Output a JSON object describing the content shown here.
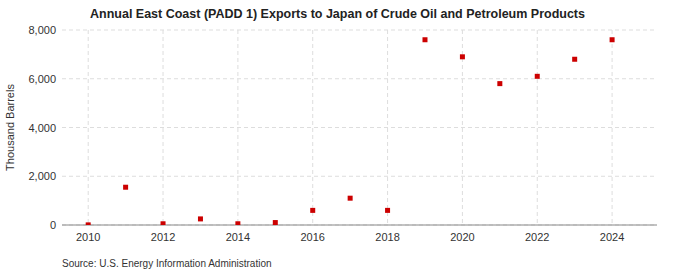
{
  "chart_data": {
    "type": "scatter",
    "title": "Annual East Coast (PADD 1) Exports to Japan of Crude Oil and Petroleum Products",
    "ylabel": "Thousand Barrels",
    "source": "Source: U.S. Energy Information Administration",
    "x": [
      2010,
      2011,
      2012,
      2013,
      2014,
      2015,
      2016,
      2017,
      2018,
      2019,
      2020,
      2021,
      2022,
      2023,
      2024
    ],
    "values": [
      5,
      1550,
      50,
      250,
      50,
      100,
      600,
      1100,
      600,
      7600,
      6900,
      5800,
      6100,
      6800,
      7600
    ],
    "color": "#cc0000",
    "marker": "square",
    "xlim": [
      2009.3,
      2025.2
    ],
    "xticks": [
      2010,
      2012,
      2014,
      2016,
      2018,
      2020,
      2022,
      2024
    ],
    "ylim": [
      0,
      8000
    ],
    "yticks": [
      0,
      {
        "value": 2000,
        "label": "2,000"
      },
      {
        "value": 4000,
        "label": "4,000"
      },
      {
        "value": 6000,
        "label": "6,000"
      },
      {
        "value": 8000,
        "label": "8,000"
      }
    ],
    "grid": true
  }
}
